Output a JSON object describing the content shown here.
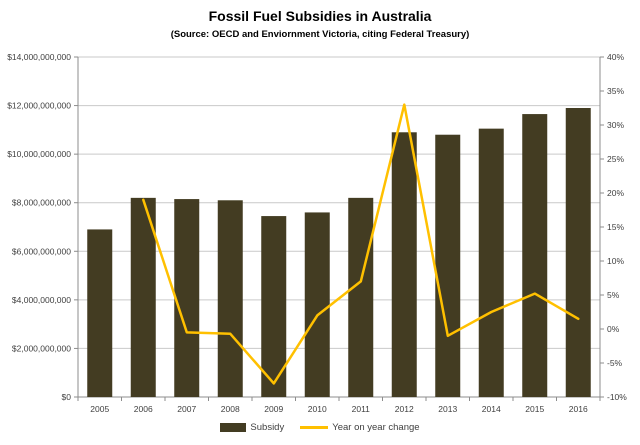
{
  "title": "Fossil Fuel Subsidies in Australia",
  "subtitle": "(Source: OECD and Enviornment Victoria, citing Federal Treasury)",
  "colors": {
    "bar": "#433c22",
    "line": "#ffc000",
    "grid": "#c9c9c9",
    "axis": "#8c8c8c",
    "tick_text": "#3f3f3f"
  },
  "chart_data": {
    "type": "bar+line combo",
    "title": "Fossil Fuel Subsidies in Australia",
    "subtitle": "(Source: OECD and Enviornment Victoria, citing Federal Treasury)",
    "categories": [
      "2005",
      "2006",
      "2007",
      "2008",
      "2009",
      "2010",
      "2011",
      "2012",
      "2013",
      "2014",
      "2015",
      "2016"
    ],
    "series": [
      {
        "name": "Subsidy",
        "type": "bar",
        "axis": "left",
        "values": [
          6900000000,
          8200000000,
          8150000000,
          8100000000,
          7450000000,
          7600000000,
          8200000000,
          10900000000,
          10800000000,
          11050000000,
          11650000000,
          11900000000
        ]
      },
      {
        "name": "Year on year change",
        "type": "line",
        "axis": "right",
        "values": [
          null,
          19,
          -0.5,
          -0.7,
          -8,
          2,
          7,
          33,
          -1,
          2.5,
          5.2,
          1.5
        ]
      }
    ],
    "left_axis": {
      "min": 0,
      "max": 14000000000,
      "tick_step": 2000000000,
      "tick_labels": [
        "$0",
        "$2,000,000,000",
        "$4,000,000,000",
        "$6,000,000,000",
        "$8,000,000,000",
        "$10,000,000,000",
        "$12,000,000,000",
        "$14,000,000,000"
      ]
    },
    "right_axis": {
      "min": -10,
      "max": 40,
      "tick_step": 5,
      "tick_labels": [
        "-10%",
        "-5%",
        "0%",
        "5%",
        "10%",
        "15%",
        "20%",
        "25%",
        "30%",
        "35%",
        "40%"
      ]
    },
    "grid": true,
    "legend_position": "bottom"
  }
}
